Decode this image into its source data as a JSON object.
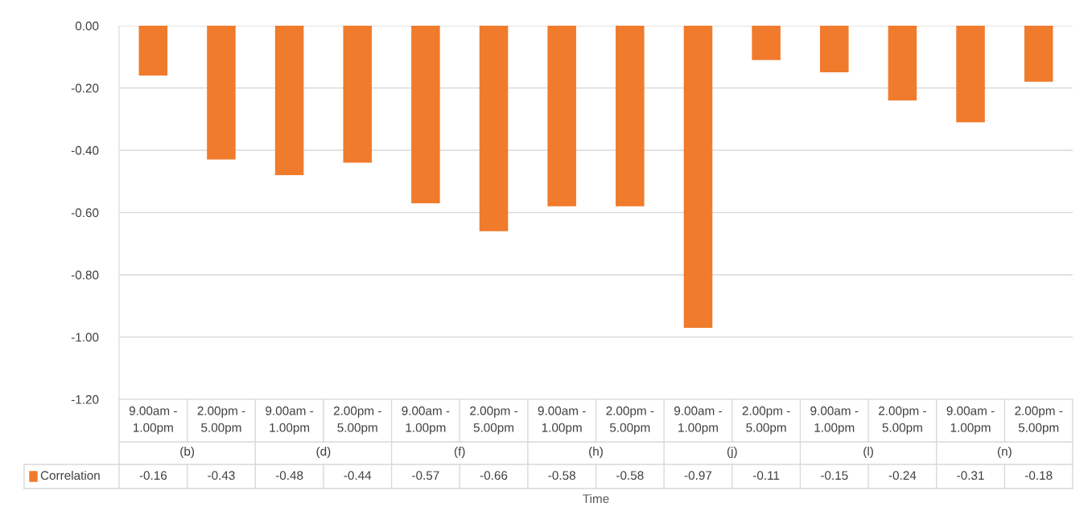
{
  "chart_data": {
    "type": "bar",
    "xlabel": "Time",
    "categories": [
      "9.00am - 1.00pm",
      "2.00pm - 5.00pm",
      "9.00am - 1.00pm",
      "2.00pm - 5.00pm",
      "9.00am - 1.00pm",
      "2.00pm - 5.00pm",
      "9.00am - 1.00pm",
      "2.00pm - 5.00pm",
      "9.00am - 1.00pm",
      "2.00pm - 5.00pm",
      "9.00am - 1.00pm",
      "2.00pm - 5.00pm",
      "9.00am - 1.00pm",
      "2.00pm - 5.00pm"
    ],
    "annotations": [
      "(b)",
      "(d)",
      "(f)",
      "(h)",
      "(j)",
      "(l)",
      "(n)"
    ],
    "series": [
      {
        "name": "Correlation",
        "color": "#f07b2c",
        "values": [
          -0.16,
          -0.43,
          -0.48,
          -0.44,
          -0.57,
          -0.66,
          -0.58,
          -0.58,
          -0.97,
          -0.11,
          -0.15,
          -0.24,
          -0.31,
          -0.18
        ]
      }
    ],
    "ylim": [
      -1.2,
      0
    ],
    "yticks": [
      {
        "value": 0,
        "label": "0.00"
      },
      {
        "value": -0.2,
        "label": "-0.20"
      },
      {
        "value": -0.4,
        "label": "-0.40"
      },
      {
        "value": -0.6,
        "label": "-0.60"
      },
      {
        "value": -0.8,
        "label": "-0.80"
      },
      {
        "value": -1.0,
        "label": "-1.00"
      },
      {
        "value": -1.2,
        "label": "-1.20"
      }
    ],
    "grid": "y",
    "data_labels": true,
    "legend": "bottom left"
  }
}
